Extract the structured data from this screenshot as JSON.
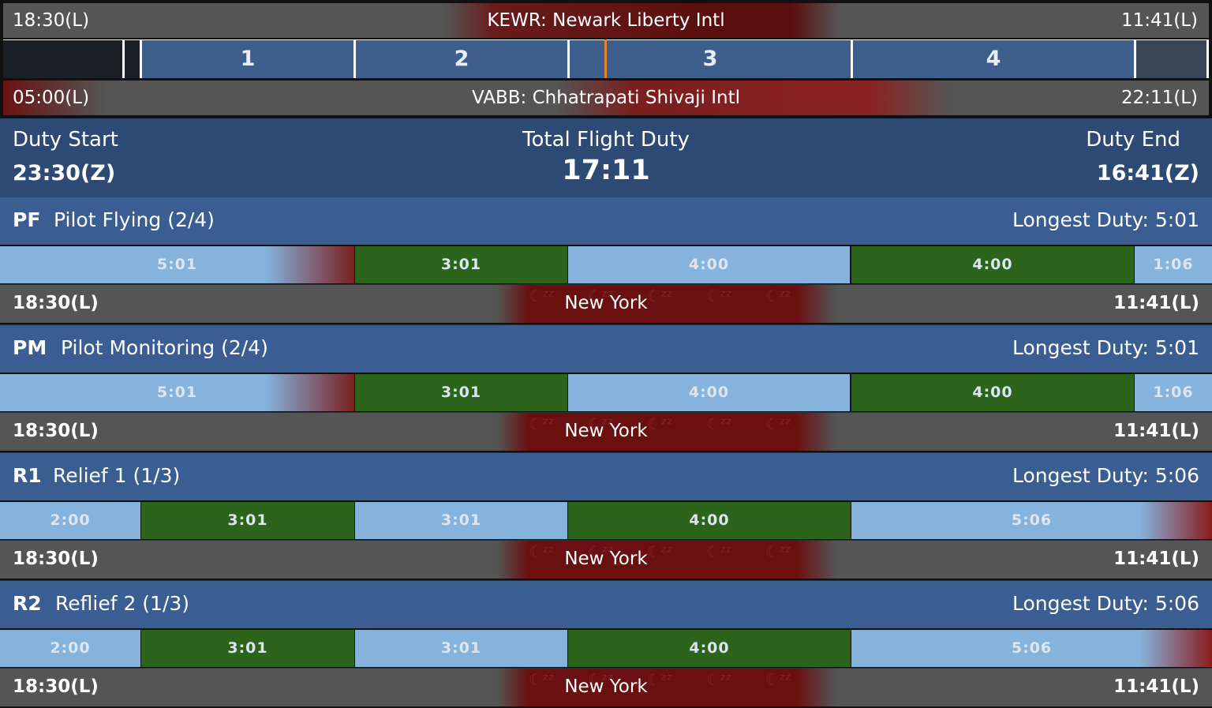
{
  "departure": {
    "left_time": "18:30(L)",
    "airport": "KEWR: Newark Liberty Intl",
    "right_time": "11:41(L)"
  },
  "sectors": [
    "1",
    "2",
    "3",
    "4"
  ],
  "arrival": {
    "left_time": "05:00(L)",
    "airport": "VABB: Chhatrapati Shivaji Intl",
    "right_time": "22:11(L)"
  },
  "duty": {
    "start_label": "Duty Start",
    "start_value": "23:30(Z)",
    "total_label": "Total Flight Duty",
    "total_value": "17:11",
    "end_label": "Duty End",
    "end_value": "16:41(Z)"
  },
  "crew": [
    {
      "code": "PF",
      "name": "Pilot Flying (2/4)",
      "longest": "Longest Duty: 5:01",
      "segments": [
        "5:01",
        "3:01",
        "4:00",
        "4:00",
        "1:06"
      ],
      "start": "18:30(L)",
      "location": "New York",
      "end": "11:41(L)"
    },
    {
      "code": "PM",
      "name": "Pilot Monitoring (2/4)",
      "longest": "Longest Duty: 5:01",
      "segments": [
        "5:01",
        "3:01",
        "4:00",
        "4:00",
        "1:06"
      ],
      "start": "18:30(L)",
      "location": "New York",
      "end": "11:41(L)"
    },
    {
      "code": "R1",
      "name": "Relief 1 (1/3)",
      "longest": "Longest Duty: 5:06",
      "segments": [
        "2:00",
        "3:01",
        "3:01",
        "4:00",
        "5:06"
      ],
      "start": "18:30(L)",
      "location": "New York",
      "end": "11:41(L)"
    },
    {
      "code": "R2",
      "name": "Reflief 2 (1/3)",
      "longest": "Longest Duty: 5:06",
      "segments": [
        "2:00",
        "3:01",
        "3:01",
        "4:00",
        "5:06"
      ],
      "start": "18:30(L)",
      "location": "New York",
      "end": "11:41(L)"
    }
  ],
  "colors": {
    "rest": "#85b3dc",
    "flying": "#2c641c",
    "header": "#3a5d92",
    "duty_bg": "#2d4a75",
    "now_marker": "#e7842d",
    "night": "#6a1010"
  },
  "icons": [
    "sleep-icon"
  ]
}
